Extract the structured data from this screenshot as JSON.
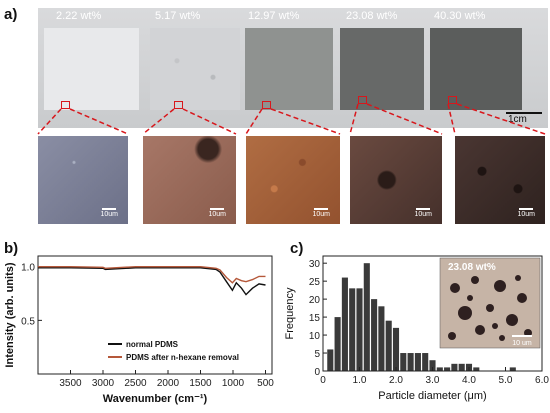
{
  "panel_a": {
    "label": "a)",
    "concentrations": [
      "2.22 wt%",
      "5.17 wt%",
      "12.97 wt%",
      "23.08 wt%",
      "40.30 wt%"
    ],
    "sample_colors": [
      "#e8e9eb",
      "#d2d3d6",
      "#8f9290",
      "#676968",
      "#5b5d5c"
    ],
    "micro_colors": [
      "#7b7f95",
      "#9a6a5a",
      "#a4623c",
      "#5a3c35",
      "#3a2a28"
    ],
    "micro_scalebar": "10um",
    "scale_label": "1cm",
    "marker_color": "#d8171c"
  },
  "panel_b": {
    "label": "b)",
    "chart_data": {
      "type": "line",
      "xlabel": "Wavenumber (cm⁻¹)",
      "ylabel": "Intensity (arb. units)",
      "xlim": [
        4000,
        400
      ],
      "ylim": [
        0.0,
        1.1
      ],
      "xticks": [
        3500,
        3000,
        2500,
        2000,
        1500,
        1000,
        500
      ],
      "xtick_labels": [
        "3500",
        "3000",
        "2500",
        "2000",
        "1500",
        "1000",
        "500"
      ],
      "yticks": [
        0.5,
        1.0
      ],
      "ytick_labels": [
        "0.5",
        "1.0"
      ],
      "series": [
        {
          "name": "normal PDMS",
          "color": "#111111",
          "points": [
            [
              4000,
              0.99
            ],
            [
              3500,
              0.99
            ],
            [
              3000,
              0.985
            ],
            [
              2965,
              0.975
            ],
            [
              2500,
              0.99
            ],
            [
              2160,
              0.99
            ],
            [
              1500,
              0.99
            ],
            [
              1260,
              0.975
            ],
            [
              1200,
              0.95
            ],
            [
              1100,
              0.86
            ],
            [
              1010,
              0.78
            ],
            [
              950,
              0.85
            ],
            [
              870,
              0.8
            ],
            [
              800,
              0.74
            ],
            [
              700,
              0.8
            ],
            [
              600,
              0.84
            ],
            [
              500,
              0.83
            ]
          ]
        },
        {
          "name": "PDMS after n-hexane removal",
          "color": "#b5583a",
          "points": [
            [
              4000,
              1.0
            ],
            [
              3500,
              1.0
            ],
            [
              3000,
              0.995
            ],
            [
              2965,
              0.985
            ],
            [
              2500,
              1.0
            ],
            [
              2160,
              1.0
            ],
            [
              1500,
              1.0
            ],
            [
              1260,
              0.985
            ],
            [
              1200,
              0.97
            ],
            [
              1100,
              0.9
            ],
            [
              1010,
              0.85
            ],
            [
              950,
              0.89
            ],
            [
              870,
              0.87
            ],
            [
              800,
              0.86
            ],
            [
              700,
              0.88
            ],
            [
              600,
              0.91
            ],
            [
              500,
              0.91
            ]
          ]
        }
      ],
      "legend_position": "bottom-right"
    }
  },
  "panel_c": {
    "label": "c)",
    "inset_label": "23.08 wt%",
    "inset_scalebar": "10 um",
    "chart_data": {
      "type": "bar",
      "xlabel": "Particle diameter (μm)",
      "ylabel": "Frequency",
      "xlim": [
        0,
        6
      ],
      "ylim": [
        0,
        32
      ],
      "xticks": [
        0,
        1.0,
        2.0,
        3.0,
        4.0,
        5.0,
        6.0
      ],
      "xtick_labels": [
        "0",
        "1.0",
        "2.0",
        "3.0",
        "4.0",
        "5.0",
        "6.0"
      ],
      "yticks": [
        0,
        5,
        10,
        15,
        20,
        25,
        30
      ],
      "ytick_labels": [
        "0",
        "5",
        "10",
        "15",
        "20",
        "25",
        "30"
      ],
      "bin_width": 0.2,
      "bin_starts": [
        0.1,
        0.3,
        0.5,
        0.7,
        0.9,
        1.1,
        1.3,
        1.5,
        1.7,
        1.9,
        2.1,
        2.3,
        2.5,
        2.7,
        2.9,
        3.1,
        3.3,
        3.5,
        3.7,
        3.9,
        4.1,
        5.1
      ],
      "values": [
        6,
        15,
        26,
        23,
        23,
        30,
        20,
        18,
        14,
        12,
        5,
        5,
        5,
        5,
        3,
        1,
        1,
        2,
        2,
        2,
        1,
        1
      ],
      "bar_color": "#3a3a3a"
    }
  }
}
